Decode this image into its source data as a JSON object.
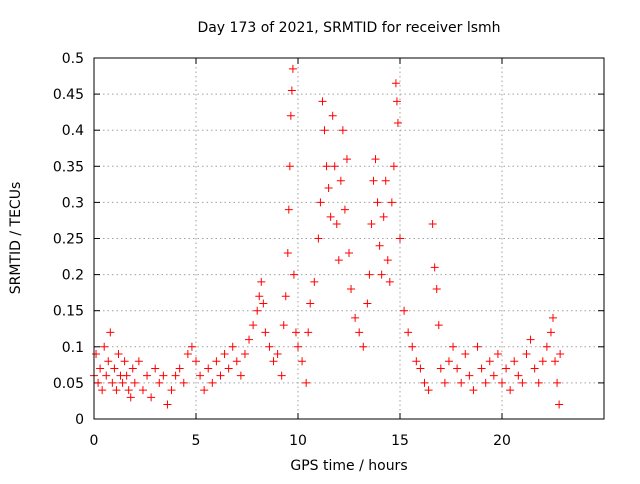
{
  "chart_data": {
    "type": "scatter",
    "title": "Day 173 of 2021, SRMTID for receiver lsmh",
    "xlabel": "GPS time / hours",
    "ylabel": "SRMTID / TECUs",
    "xlim": [
      0,
      25
    ],
    "ylim": [
      0,
      0.5
    ],
    "xticks": [
      0,
      5,
      10,
      15,
      20
    ],
    "xtick_labels": [
      "0",
      "5",
      "10",
      "15",
      "20"
    ],
    "yticks": [
      0,
      0.05,
      0.1,
      0.15,
      0.2,
      0.25,
      0.3,
      0.35,
      0.4,
      0.45,
      0.5
    ],
    "ytick_labels": [
      "0",
      "0.05",
      "0.1",
      "0.15",
      "0.2",
      "0.25",
      "0.3",
      "0.35",
      "0.4",
      "0.45",
      "0.5"
    ],
    "grid": true,
    "marker": "+",
    "series": [
      {
        "name": "SRMTID",
        "color": "#ff0000",
        "points": [
          [
            0.0,
            0.06
          ],
          [
            0.1,
            0.09
          ],
          [
            0.2,
            0.05
          ],
          [
            0.3,
            0.07
          ],
          [
            0.4,
            0.04
          ],
          [
            0.5,
            0.1
          ],
          [
            0.6,
            0.06
          ],
          [
            0.7,
            0.08
          ],
          [
            0.8,
            0.12
          ],
          [
            0.9,
            0.05
          ],
          [
            1.0,
            0.07
          ],
          [
            1.1,
            0.04
          ],
          [
            1.2,
            0.09
          ],
          [
            1.3,
            0.06
          ],
          [
            1.4,
            0.05
          ],
          [
            1.5,
            0.08
          ],
          [
            1.6,
            0.06
          ],
          [
            1.7,
            0.04
          ],
          [
            1.8,
            0.03
          ],
          [
            1.9,
            0.07
          ],
          [
            2.0,
            0.05
          ],
          [
            2.2,
            0.08
          ],
          [
            2.4,
            0.04
          ],
          [
            2.6,
            0.06
          ],
          [
            2.8,
            0.03
          ],
          [
            3.0,
            0.07
          ],
          [
            3.2,
            0.05
          ],
          [
            3.4,
            0.06
          ],
          [
            3.6,
            0.02
          ],
          [
            3.8,
            0.04
          ],
          [
            4.0,
            0.06
          ],
          [
            4.2,
            0.07
          ],
          [
            4.4,
            0.05
          ],
          [
            4.6,
            0.09
          ],
          [
            4.8,
            0.1
          ],
          [
            5.0,
            0.08
          ],
          [
            5.2,
            0.06
          ],
          [
            5.4,
            0.04
          ],
          [
            5.6,
            0.07
          ],
          [
            5.8,
            0.05
          ],
          [
            6.0,
            0.08
          ],
          [
            6.2,
            0.06
          ],
          [
            6.4,
            0.09
          ],
          [
            6.6,
            0.07
          ],
          [
            6.8,
            0.1
          ],
          [
            7.0,
            0.08
          ],
          [
            7.2,
            0.06
          ],
          [
            7.4,
            0.09
          ],
          [
            7.6,
            0.11
          ],
          [
            7.8,
            0.13
          ],
          [
            8.0,
            0.15
          ],
          [
            8.1,
            0.17
          ],
          [
            8.2,
            0.19
          ],
          [
            8.3,
            0.16
          ],
          [
            8.4,
            0.12
          ],
          [
            8.6,
            0.1
          ],
          [
            8.8,
            0.08
          ],
          [
            9.0,
            0.09
          ],
          [
            9.2,
            0.06
          ],
          [
            9.3,
            0.13
          ],
          [
            9.4,
            0.17
          ],
          [
            9.5,
            0.23
          ],
          [
            9.55,
            0.29
          ],
          [
            9.6,
            0.35
          ],
          [
            9.65,
            0.42
          ],
          [
            9.7,
            0.455
          ],
          [
            9.75,
            0.485
          ],
          [
            9.8,
            0.2
          ],
          [
            9.9,
            0.12
          ],
          [
            10.0,
            0.1
          ],
          [
            10.2,
            0.08
          ],
          [
            10.4,
            0.05
          ],
          [
            10.5,
            0.12
          ],
          [
            10.6,
            0.16
          ],
          [
            10.8,
            0.19
          ],
          [
            11.0,
            0.25
          ],
          [
            11.1,
            0.3
          ],
          [
            11.2,
            0.44
          ],
          [
            11.3,
            0.4
          ],
          [
            11.4,
            0.35
          ],
          [
            11.5,
            0.32
          ],
          [
            11.6,
            0.28
          ],
          [
            11.7,
            0.42
          ],
          [
            11.8,
            0.35
          ],
          [
            11.9,
            0.27
          ],
          [
            12.0,
            0.22
          ],
          [
            12.1,
            0.33
          ],
          [
            12.2,
            0.4
          ],
          [
            12.3,
            0.29
          ],
          [
            12.4,
            0.36
          ],
          [
            12.5,
            0.23
          ],
          [
            12.6,
            0.18
          ],
          [
            12.8,
            0.14
          ],
          [
            13.0,
            0.12
          ],
          [
            13.2,
            0.1
          ],
          [
            13.4,
            0.16
          ],
          [
            13.5,
            0.2
          ],
          [
            13.6,
            0.27
          ],
          [
            13.7,
            0.33
          ],
          [
            13.8,
            0.36
          ],
          [
            13.9,
            0.3
          ],
          [
            14.0,
            0.24
          ],
          [
            14.1,
            0.2
          ],
          [
            14.2,
            0.28
          ],
          [
            14.3,
            0.33
          ],
          [
            14.4,
            0.22
          ],
          [
            14.5,
            0.19
          ],
          [
            14.6,
            0.3
          ],
          [
            14.7,
            0.35
          ],
          [
            14.8,
            0.465
          ],
          [
            14.85,
            0.44
          ],
          [
            14.9,
            0.41
          ],
          [
            15.0,
            0.25
          ],
          [
            15.2,
            0.15
          ],
          [
            15.4,
            0.12
          ],
          [
            15.6,
            0.1
          ],
          [
            15.8,
            0.08
          ],
          [
            16.0,
            0.07
          ],
          [
            16.2,
            0.05
          ],
          [
            16.4,
            0.04
          ],
          [
            16.6,
            0.27
          ],
          [
            16.7,
            0.21
          ],
          [
            16.8,
            0.18
          ],
          [
            16.9,
            0.13
          ],
          [
            17.0,
            0.07
          ],
          [
            17.2,
            0.05
          ],
          [
            17.4,
            0.08
          ],
          [
            17.6,
            0.1
          ],
          [
            17.8,
            0.07
          ],
          [
            18.0,
            0.05
          ],
          [
            18.2,
            0.09
          ],
          [
            18.4,
            0.06
          ],
          [
            18.6,
            0.04
          ],
          [
            18.8,
            0.1
          ],
          [
            19.0,
            0.07
          ],
          [
            19.2,
            0.05
          ],
          [
            19.4,
            0.08
          ],
          [
            19.6,
            0.06
          ],
          [
            19.8,
            0.09
          ],
          [
            20.0,
            0.05
          ],
          [
            20.2,
            0.07
          ],
          [
            20.4,
            0.04
          ],
          [
            20.6,
            0.08
          ],
          [
            20.8,
            0.06
          ],
          [
            21.0,
            0.05
          ],
          [
            21.2,
            0.09
          ],
          [
            21.4,
            0.11
          ],
          [
            21.6,
            0.07
          ],
          [
            21.8,
            0.05
          ],
          [
            22.0,
            0.08
          ],
          [
            22.2,
            0.1
          ],
          [
            22.4,
            0.12
          ],
          [
            22.5,
            0.14
          ],
          [
            22.6,
            0.08
          ],
          [
            22.7,
            0.05
          ],
          [
            22.8,
            0.02
          ],
          [
            22.85,
            0.09
          ]
        ]
      }
    ]
  }
}
